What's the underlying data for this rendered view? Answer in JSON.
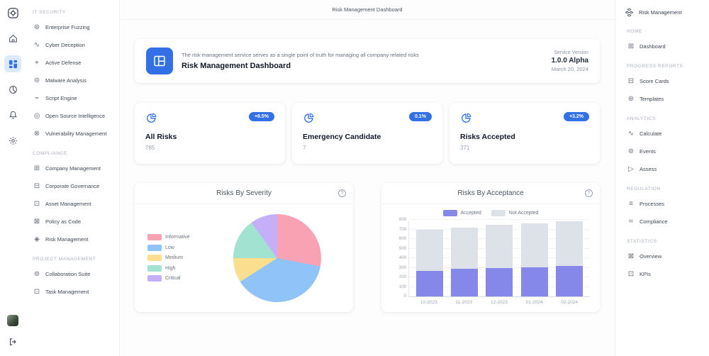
{
  "colors": {
    "accent": "#3370e6"
  },
  "icons": {
    "help": "?"
  },
  "top": {
    "header_title": "Risk Management Dashboard",
    "brand_label": "Risk Management"
  },
  "sidebar": {
    "sections": [
      {
        "title": "IT SECURITY",
        "items": [
          {
            "icon": "⊛",
            "label": "Enterprise Fuzzing"
          },
          {
            "icon": "∿",
            "label": "Cyber Deception"
          },
          {
            "icon": "⌖",
            "label": "Active Defense"
          },
          {
            "icon": "⊜",
            "label": "Malware Analysis"
          },
          {
            "icon": "⌁",
            "label": "Script Engine"
          },
          {
            "icon": "◎",
            "label": "Open Source Intelligence"
          },
          {
            "icon": "⊗",
            "label": "Vulnerability Management"
          }
        ]
      },
      {
        "title": "COMPLIANCE",
        "items": [
          {
            "icon": "⊞",
            "label": "Company Management"
          },
          {
            "icon": "⊟",
            "label": "Corporate Governance"
          },
          {
            "icon": "⊡",
            "label": "Asset Management"
          },
          {
            "icon": "⊠",
            "label": "Policy as Code"
          },
          {
            "icon": "◈",
            "label": "Risk Management"
          }
        ]
      },
      {
        "title": "PROJECT MANAGEMENT",
        "items": [
          {
            "icon": "⊚",
            "label": "Collaboration Suite"
          },
          {
            "icon": "⊡",
            "label": "Task Management"
          }
        ]
      }
    ]
  },
  "right_sidebar": {
    "sections": [
      {
        "title": "HOME",
        "items": [
          {
            "icon": "⊞",
            "label": "Dashboard"
          }
        ]
      },
      {
        "title": "PROGRESS REPORTS",
        "items": [
          {
            "icon": "⊟",
            "label": "Score Cards"
          },
          {
            "icon": "⊛",
            "label": "Templates"
          }
        ]
      },
      {
        "title": "ANALYTICS",
        "items": [
          {
            "icon": "∿",
            "label": "Calculate"
          },
          {
            "icon": "⊚",
            "label": "Events"
          },
          {
            "icon": "▷",
            "label": "Assess"
          }
        ]
      },
      {
        "title": "REGULATION",
        "items": [
          {
            "icon": "≡",
            "label": "Processes"
          },
          {
            "icon": "⌗",
            "label": "Compliance"
          }
        ]
      },
      {
        "title": "STATISTICS",
        "items": [
          {
            "icon": "⊠",
            "label": "Overview"
          },
          {
            "icon": "⊡",
            "label": "KPIs"
          }
        ]
      }
    ]
  },
  "banner": {
    "description": "The risk management service serves as a single point of truth for managing all company related risks",
    "title": "Risk Management Dashboard",
    "version_label": "Service Version",
    "version": "1.0.0 Alpha",
    "date": "March 20, 2024"
  },
  "stat_cards": [
    {
      "title": "All Risks",
      "value": "785",
      "badge": "+8.5%"
    },
    {
      "title": "Emergency Candidate",
      "value": "7",
      "badge": "0.1%"
    },
    {
      "title": "Risks Accepted",
      "value": "371",
      "badge": "+3.2%"
    }
  ],
  "chart_data": [
    {
      "type": "pie",
      "title": "Risks By Severity",
      "labels": [
        "Informative",
        "Low",
        "Medium",
        "High",
        "Critical"
      ],
      "values": [
        28,
        38,
        9,
        15,
        10
      ],
      "colors": [
        "#f9a2b4",
        "#90c4f9",
        "#fbdf8e",
        "#a2e2d0",
        "#c5aff9"
      ],
      "legend_position": "left"
    },
    {
      "type": "bar",
      "stacked": true,
      "title": "Risks By Acceptance",
      "categories": [
        "10-2023",
        "11-2023",
        "12-2023",
        "01-2024",
        "02-2024"
      ],
      "series": [
        {
          "name": "Accepted",
          "color": "#8588e8",
          "values": [
            270,
            290,
            295,
            305,
            320
          ]
        },
        {
          "name": "Not Accepted",
          "color": "#dde2e9",
          "values": [
            430,
            430,
            450,
            455,
            465
          ]
        }
      ],
      "ylim": [
        0,
        800
      ],
      "ytick_step": 100,
      "grid": true,
      "legend_position": "top"
    }
  ]
}
